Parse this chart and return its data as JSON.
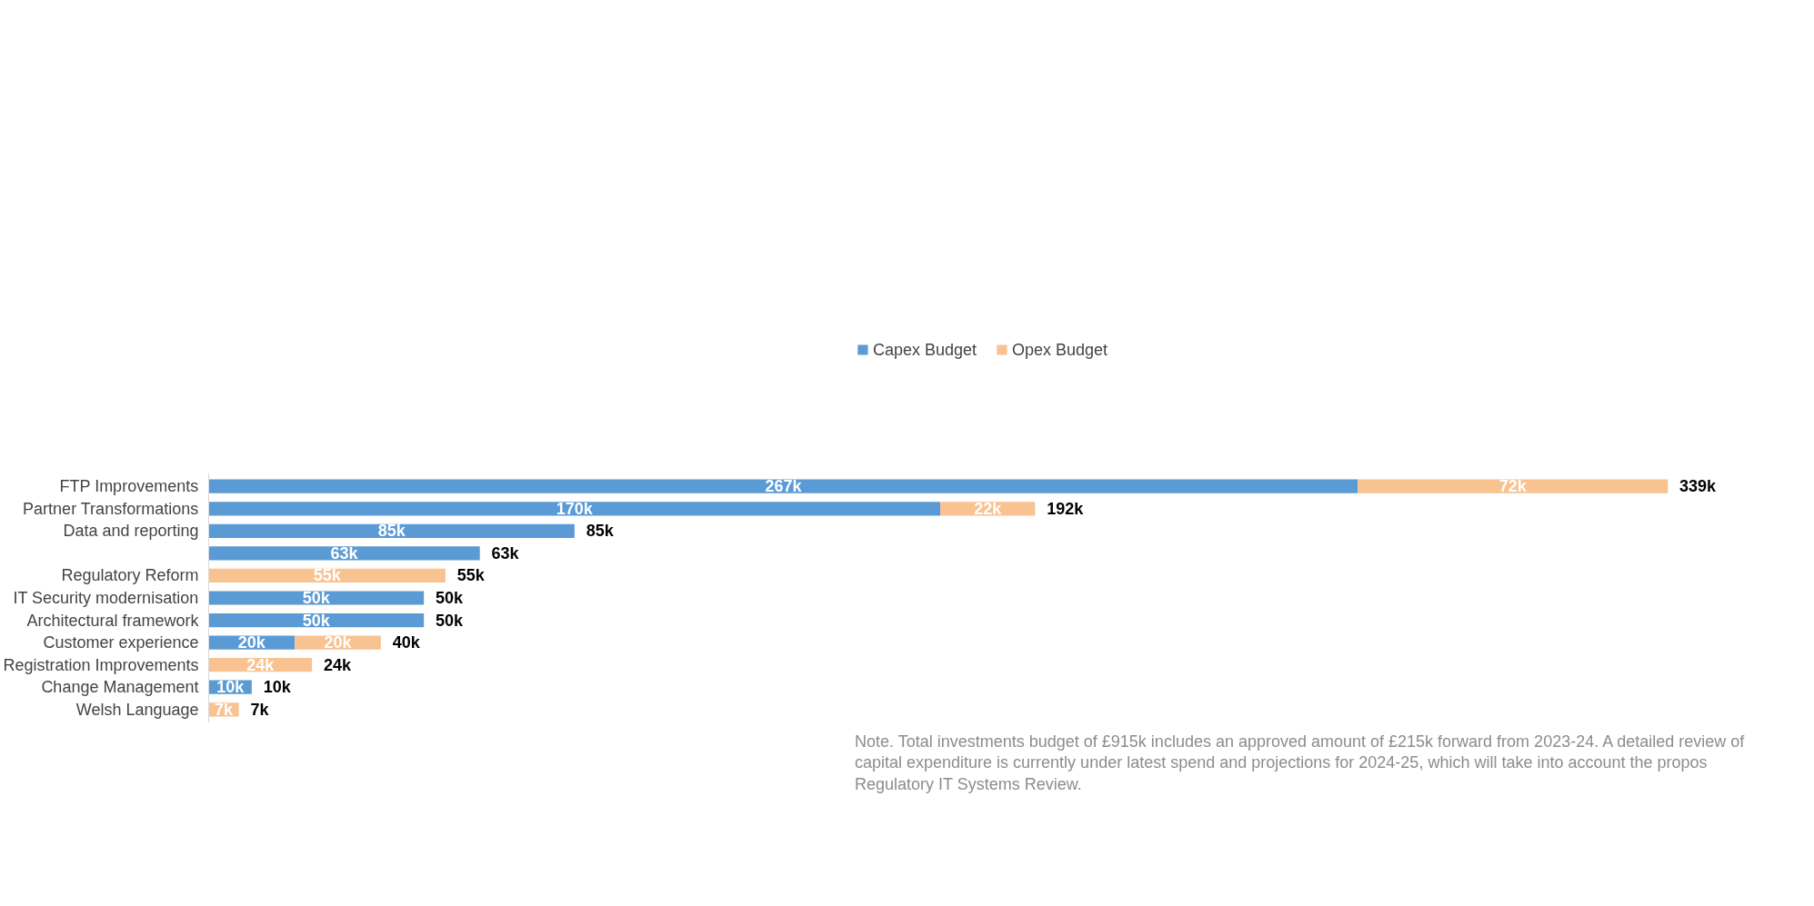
{
  "chart_data": {
    "type": "bar",
    "orientation": "horizontal",
    "stacked": true,
    "categories": [
      "FTP Improvements",
      "Partner Transformations",
      "Data and reporting",
      null,
      "Regulatory Reform",
      "IT Security modernisation",
      "Architectural framework",
      "Customer experience",
      "Registration Improvements",
      "Change Management",
      "Welsh Language"
    ],
    "series": [
      {
        "name": "Capex Budget",
        "color": "#5b9bd5",
        "values": [
          267,
          170,
          85,
          63,
          null,
          50,
          50,
          20,
          null,
          10,
          null
        ],
        "value_labels": [
          "267k",
          "170k",
          "85k",
          "63k",
          null,
          "50k",
          "50k",
          "20k",
          null,
          "10k",
          null
        ]
      },
      {
        "name": "Opex Budget",
        "color": "#f8c291",
        "values": [
          72,
          22,
          null,
          null,
          55,
          null,
          null,
          20,
          24,
          null,
          7
        ],
        "value_labels": [
          "72k",
          "22k",
          null,
          null,
          "55k",
          null,
          null,
          "20k",
          "24k",
          null,
          "7k"
        ]
      }
    ],
    "totals": [
      "339k",
      "192k",
      "85k",
      "63k",
      "55k",
      "50k",
      "50k",
      "40k",
      "24k",
      "10k",
      "7k"
    ],
    "legend": "top",
    "grid": false,
    "annotations": [
      "Note. Total investments budget of £915k includes an approved amount of £215k forward from 2023-24. A detailed review of capital expenditure is currently under latest spend and projections for 2024-25, which will take into account the propos Regulatory IT Systems Review."
    ]
  }
}
